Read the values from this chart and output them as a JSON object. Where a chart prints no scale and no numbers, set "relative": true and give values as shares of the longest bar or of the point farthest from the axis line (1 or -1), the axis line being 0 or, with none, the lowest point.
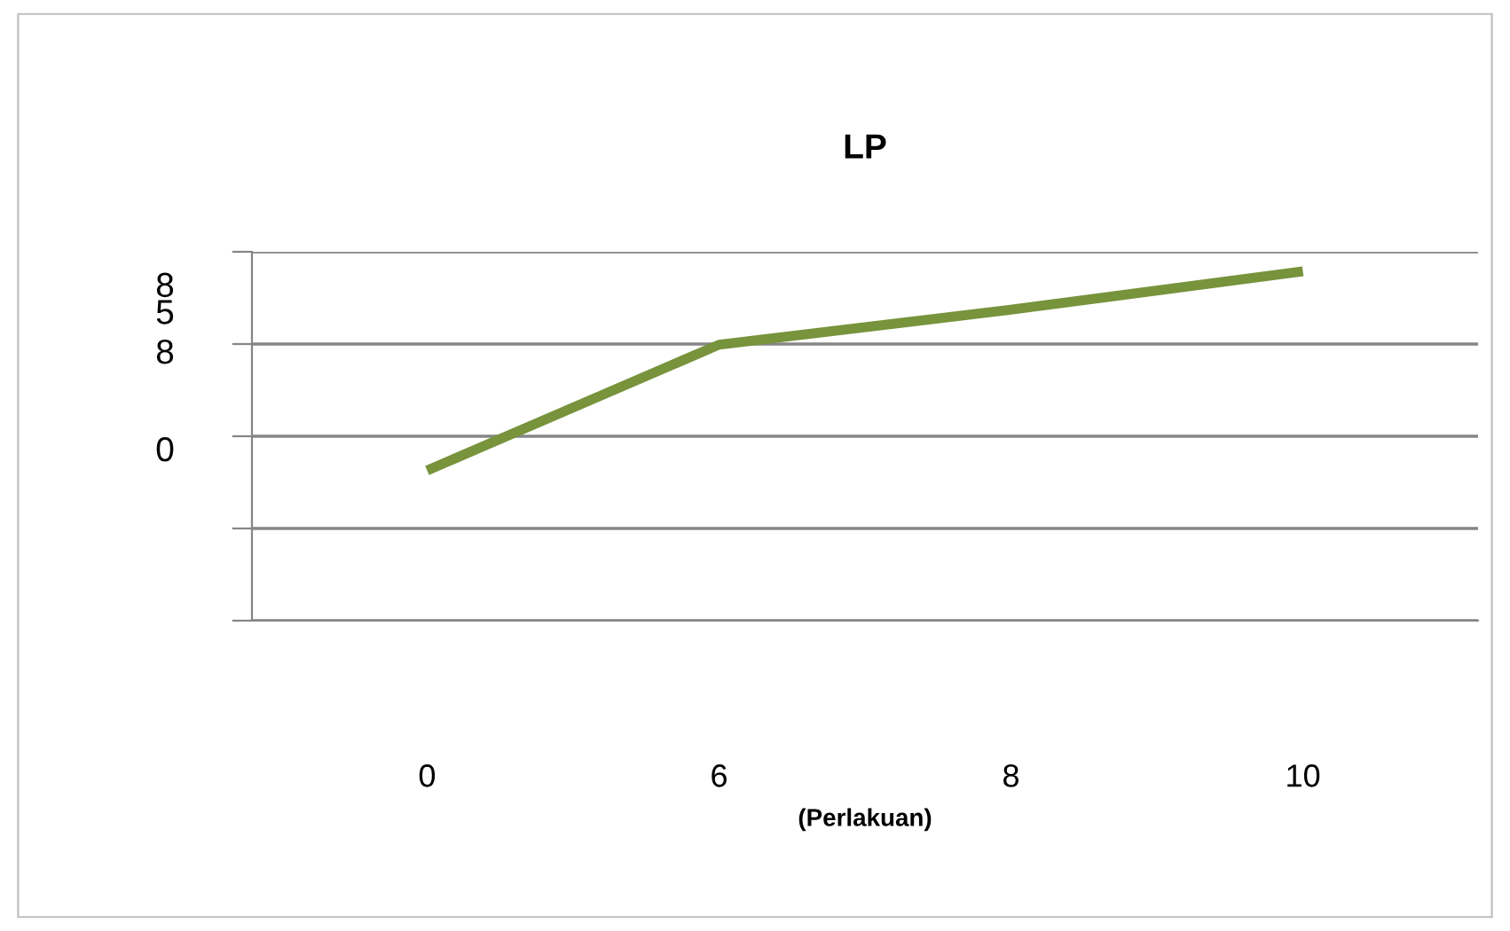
{
  "chart_data": {
    "type": "line",
    "title": "LP",
    "xlabel": "(Perlakuan)",
    "categories": [
      "0",
      "6",
      "8",
      "10"
    ],
    "series": [
      {
        "color": "#77933c",
        "values": [
          0.43,
          0.79,
          0.89,
          1.0
        ]
      }
    ],
    "relative": true,
    "grid": "y",
    "marker": "none",
    "line_style": "solid",
    "annotations": [
      "8\n5",
      "8",
      "0"
    ]
  }
}
